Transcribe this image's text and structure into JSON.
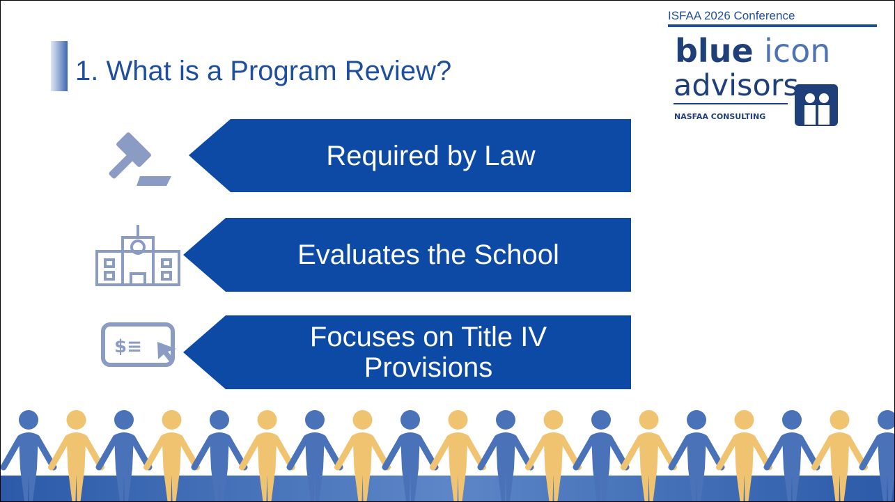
{
  "header": {
    "conference": "ISFAA 2026 Conference",
    "title": "1. What is a Program Review?"
  },
  "logo": {
    "word1": "blue",
    "word2": "icon",
    "word3": "advisors",
    "tagline": "NASFAA CONSULTING"
  },
  "items": [
    {
      "label": "Required by Law"
    },
    {
      "label": "Evaluates the School"
    },
    {
      "label": "Focuses on Title IV Provisions"
    }
  ]
}
